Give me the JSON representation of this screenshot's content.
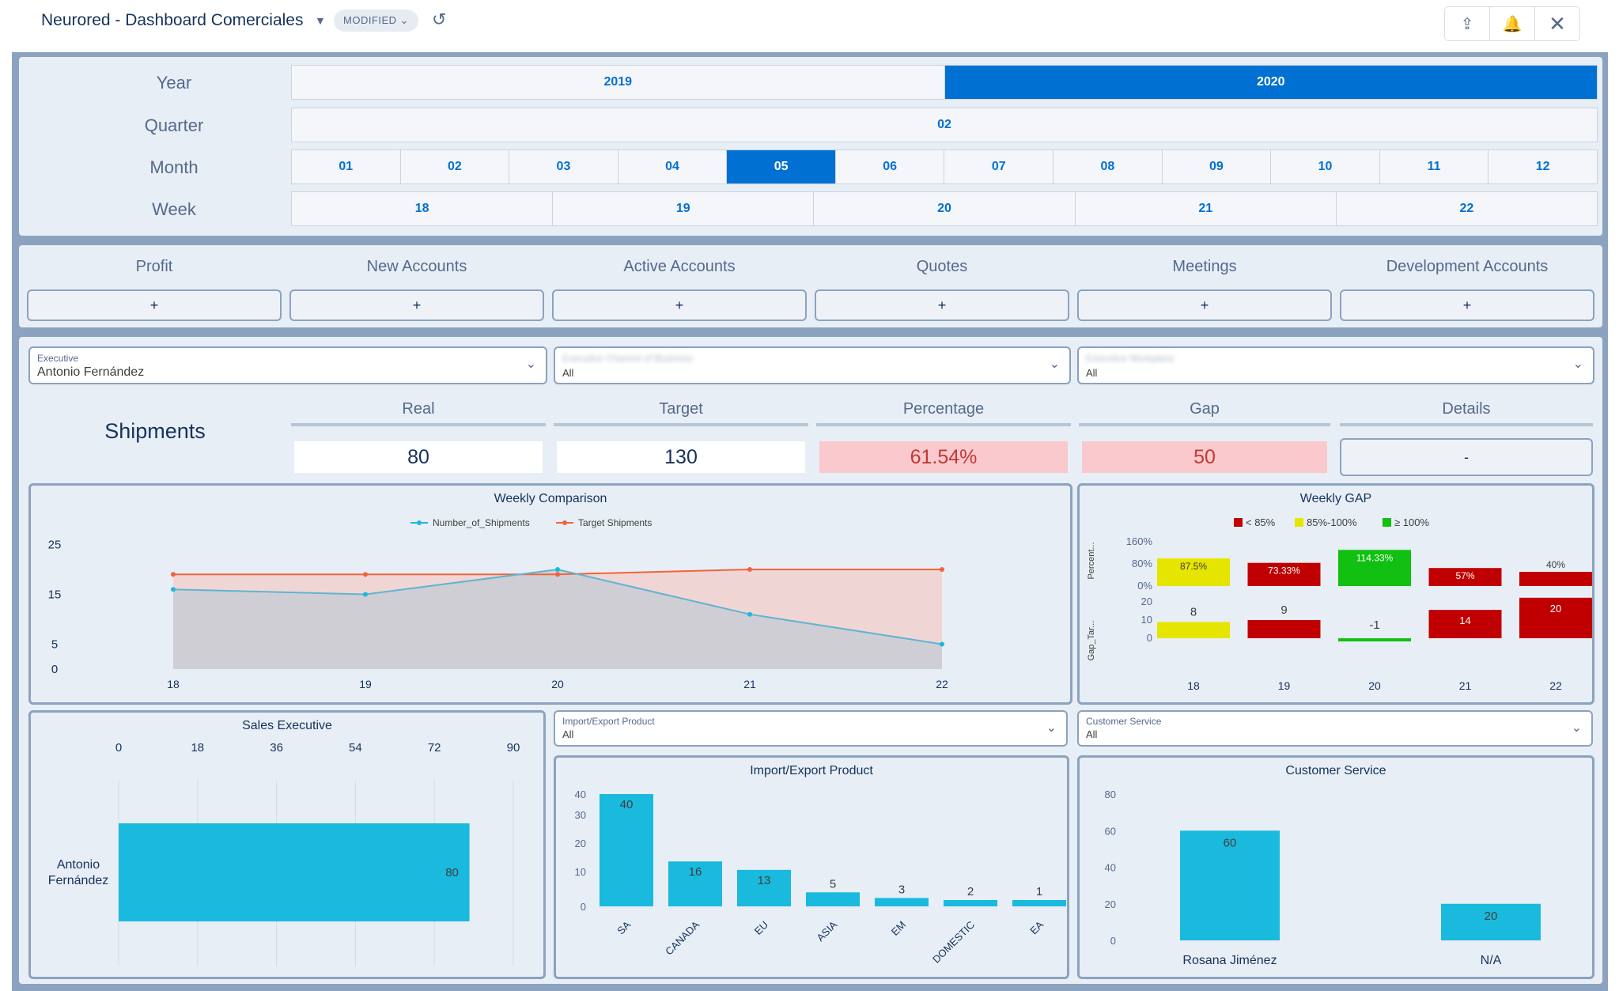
{
  "header": {
    "title": "Neurored - Dashboard Comerciales",
    "badge": "MODIFIED"
  },
  "filters": {
    "year_label": "Year",
    "years": [
      "2019",
      "2020"
    ],
    "year_selected": "2020",
    "quarter_label": "Quarter",
    "quarters": [
      "02"
    ],
    "month_label": "Month",
    "months": [
      "01",
      "02",
      "03",
      "04",
      "05",
      "06",
      "07",
      "08",
      "09",
      "10",
      "11",
      "12"
    ],
    "month_selected": "05",
    "week_label": "Week",
    "weeks": [
      "18",
      "19",
      "20",
      "21",
      "22"
    ]
  },
  "metrics": {
    "tabs": [
      "Profit",
      "New Accounts",
      "Active Accounts",
      "Quotes",
      "Meetings",
      "Development Accounts"
    ],
    "plus": "+"
  },
  "dropdowns": {
    "executive": {
      "label": "Executive",
      "value": "Antonio Fernández"
    },
    "second": {
      "label": "Executive Channel of Business",
      "value": "All"
    },
    "third": {
      "label": "Executive Workplace",
      "value": "All"
    }
  },
  "shipments": {
    "title": "Shipments",
    "headers": [
      "Real",
      "Target",
      "Percentage",
      "Gap",
      "Details"
    ],
    "real": "80",
    "target": "130",
    "percentage": "61.54%",
    "gap": "50",
    "details": "-"
  },
  "colors": {
    "accent": "#0070d2",
    "cyan": "#1ab9de",
    "orange": "#f0643c",
    "red": "#c00000",
    "yellow": "#e5e500",
    "green": "#11c011"
  },
  "chart_data": [
    {
      "type": "line",
      "title": "Weekly Comparison",
      "x": [
        "18",
        "19",
        "20",
        "21",
        "22"
      ],
      "series": [
        {
          "name": "Number_of_Shipments",
          "values": [
            16,
            15,
            20,
            11,
            5
          ]
        },
        {
          "name": "Target Shipments",
          "values": [
            19,
            19,
            19,
            20,
            20
          ]
        }
      ],
      "yticks": [
        0,
        5,
        15,
        25
      ],
      "ylim": [
        0,
        27
      ]
    },
    {
      "type": "bar",
      "title": "Weekly GAP",
      "legend": [
        "< 85%",
        "85%-100%",
        "≥ 100%"
      ],
      "categories": [
        "18",
        "19",
        "20",
        "21",
        "22"
      ],
      "percent_axis": "Percent...",
      "gap_axis": "Gap_Tar...",
      "percent_values": [
        87.5,
        73.33,
        114.33,
        57,
        40
      ],
      "percent_labels": [
        "87.5%",
        "73.33%",
        "114.33%",
        "57%",
        "40%"
      ],
      "percent_ticks": [
        "160%",
        "80%",
        "0%"
      ],
      "gap_values": [
        8,
        9,
        -1,
        14,
        20
      ],
      "gap_ticks": [
        "20",
        "10",
        "0"
      ]
    },
    {
      "type": "bar",
      "title": "Sales Executive",
      "categories": [
        "Antonio Fernández"
      ],
      "values": [
        80
      ],
      "xticks": [
        "0",
        "18",
        "36",
        "54",
        "72",
        "90"
      ],
      "xlim": [
        0,
        90
      ]
    },
    {
      "type": "bar",
      "title": "Import/Export Product",
      "categories": [
        "SA",
        "CANADA",
        "EU",
        "ASIA",
        "EM",
        "DOMESTIC",
        "EA"
      ],
      "values": [
        40,
        16,
        13,
        5,
        3,
        2,
        1
      ],
      "yticks": [
        "40",
        "30",
        "20",
        "10",
        "0"
      ],
      "ylim": [
        0,
        40
      ]
    },
    {
      "type": "bar",
      "title": "Customer Service",
      "categories": [
        "Rosana Jiménez",
        "N/A"
      ],
      "values": [
        60,
        20
      ],
      "yticks": [
        "80",
        "60",
        "40",
        "20",
        "0"
      ],
      "ylim": [
        0,
        80
      ]
    }
  ],
  "bottom_dropdowns": {
    "import_export": {
      "label": "Import/Export Product",
      "value": "All"
    },
    "customer_service": {
      "label": "Customer Service",
      "value": "All"
    }
  }
}
